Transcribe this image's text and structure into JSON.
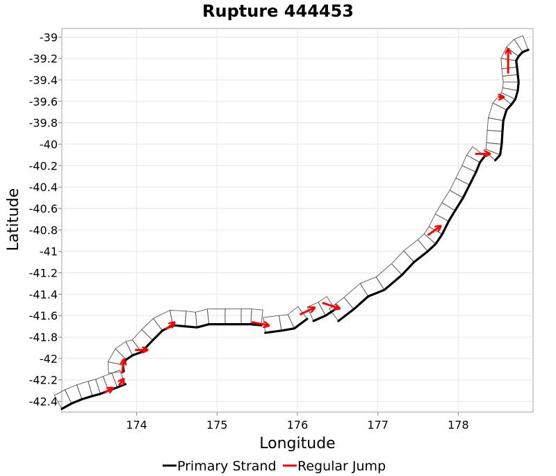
{
  "chart_data": {
    "type": "line",
    "title": "Rupture 444453",
    "xlabel": "Longitude",
    "ylabel": "Latitude",
    "xlim": [
      173.07,
      178.93
    ],
    "ylim": [
      -42.5,
      -38.92
    ],
    "xticks": [
      174,
      175,
      176,
      177,
      178
    ],
    "xtick_labels": [
      "174",
      "175",
      "176",
      "177",
      "178"
    ],
    "yticks": [
      -39,
      -39.2,
      -39.4,
      -39.6,
      -39.8,
      -40,
      -40.2,
      -40.4,
      -40.6,
      -40.8,
      -41,
      -41.2,
      -41.4,
      -41.6,
      -41.8,
      -42,
      -42.2,
      -42.4
    ],
    "ytick_labels": [
      "-39",
      "-39.2",
      "-39.4",
      "-39.6",
      "-39.8",
      "-40",
      "-40.2",
      "-40.4",
      "-40.6",
      "-40.8",
      "-41",
      "-41.2",
      "-41.4",
      "-41.6",
      "-41.8",
      "-42",
      "-42.2",
      "-42.4"
    ],
    "grid": true,
    "legend_position": "bottom",
    "colors": {
      "primary": "#000000",
      "jump": "#ff0000",
      "section": "#555555"
    },
    "series": [
      {
        "name": "Primary Strand",
        "kind": "trace",
        "segments": [
          [
            [
              173.07,
              -42.47
            ],
            [
              173.19,
              -42.42
            ],
            [
              173.32,
              -42.38
            ],
            [
              173.45,
              -42.35
            ],
            [
              173.55,
              -42.33
            ],
            [
              173.65,
              -42.3
            ],
            [
              173.76,
              -42.27
            ],
            [
              173.86,
              -42.24
            ]
          ],
          [
            [
              173.84,
              -42.12
            ],
            [
              173.83,
              -42.06
            ],
            [
              173.87,
              -42.01
            ],
            [
              173.95,
              -41.97
            ],
            [
              174.06,
              -41.94
            ],
            [
              174.2,
              -41.83
            ],
            [
              174.32,
              -41.74
            ],
            [
              174.45,
              -41.69
            ],
            [
              174.6,
              -41.7
            ],
            [
              174.75,
              -41.71
            ],
            [
              174.9,
              -41.68
            ],
            [
              175.1,
              -41.68
            ],
            [
              175.3,
              -41.68
            ],
            [
              175.42,
              -41.68
            ],
            [
              175.55,
              -41.69
            ]
          ],
          [
            [
              175.6,
              -41.76
            ],
            [
              175.8,
              -41.74
            ],
            [
              175.96,
              -41.72
            ],
            [
              176.12,
              -41.63
            ]
          ],
          [
            [
              176.2,
              -41.65
            ],
            [
              176.35,
              -41.6
            ],
            [
              176.47,
              -41.54
            ]
          ],
          [
            [
              176.51,
              -41.65
            ],
            [
              176.7,
              -41.54
            ],
            [
              176.88,
              -41.42
            ],
            [
              177.08,
              -41.36
            ],
            [
              177.3,
              -41.22
            ],
            [
              177.45,
              -41.1
            ],
            [
              177.62,
              -41.0
            ],
            [
              177.72,
              -40.93
            ],
            [
              177.8,
              -40.84
            ],
            [
              177.88,
              -40.72
            ],
            [
              177.96,
              -40.62
            ],
            [
              178.06,
              -40.5
            ],
            [
              178.14,
              -40.38
            ],
            [
              178.22,
              -40.26
            ],
            [
              178.27,
              -40.17
            ],
            [
              178.33,
              -40.11
            ]
          ],
          [
            [
              178.46,
              -40.15
            ],
            [
              178.52,
              -40.1
            ],
            [
              178.54,
              -40.0
            ],
            [
              178.55,
              -39.88
            ],
            [
              178.56,
              -39.78
            ],
            [
              178.6,
              -39.68
            ],
            [
              178.66,
              -39.63
            ],
            [
              178.71,
              -39.58
            ],
            [
              178.74,
              -39.5
            ],
            [
              178.75,
              -39.42
            ],
            [
              178.74,
              -39.35
            ],
            [
              178.73,
              -39.28
            ],
            [
              178.72,
              -39.22
            ],
            [
              178.75,
              -39.18
            ],
            [
              178.8,
              -39.14
            ],
            [
              178.87,
              -39.12
            ]
          ]
        ]
      },
      {
        "name": "Regular Jump",
        "kind": "arrows",
        "segments": [
          [
            [
              173.6,
              -42.32
            ],
            [
              173.69,
              -42.28
            ]
          ],
          [
            [
              173.78,
              -42.25
            ],
            [
              173.83,
              -42.2
            ]
          ],
          [
            [
              173.82,
              -42.14
            ],
            [
              173.84,
              -42.02
            ]
          ],
          [
            [
              173.98,
              -41.92
            ],
            [
              174.12,
              -41.92
            ]
          ],
          [
            [
              174.36,
              -41.73
            ],
            [
              174.46,
              -41.67
            ]
          ],
          [
            [
              175.43,
              -41.66
            ],
            [
              175.63,
              -41.69
            ]
          ],
          [
            [
              176.03,
              -41.59
            ],
            [
              176.2,
              -41.53
            ]
          ],
          [
            [
              176.31,
              -41.48
            ],
            [
              176.51,
              -41.53
            ]
          ],
          [
            [
              177.62,
              -40.85
            ],
            [
              177.77,
              -40.77
            ]
          ],
          [
            [
              178.21,
              -40.09
            ],
            [
              178.38,
              -40.09
            ]
          ],
          [
            [
              178.5,
              -39.56
            ],
            [
              178.55,
              -39.56
            ]
          ],
          [
            [
              178.62,
              -39.34
            ],
            [
              178.62,
              -39.12
            ]
          ]
        ]
      }
    ],
    "legend": [
      "Primary Strand",
      "Regular Jump"
    ]
  }
}
